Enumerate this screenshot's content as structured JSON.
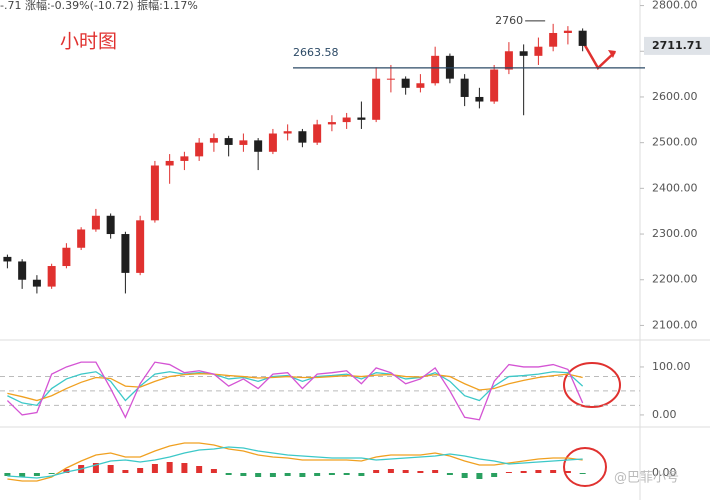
{
  "quote": "-.71 涨幅:-0.39%(-10.72) 振幅:1.17%",
  "watermark": "@巴菲小号",
  "chart_data": [
    {
      "type": "candlestick",
      "title": "小时图",
      "up_color": "#e0312f",
      "down_color": "#1f1f1f",
      "candles": [
        [
          2250,
          2255,
          2225,
          2240
        ],
        [
          2240,
          2245,
          2180,
          2200
        ],
        [
          2200,
          2210,
          2170,
          2185
        ],
        [
          2185,
          2235,
          2180,
          2230
        ],
        [
          2230,
          2280,
          2225,
          2270
        ],
        [
          2270,
          2315,
          2265,
          2310
        ],
        [
          2310,
          2355,
          2305,
          2340
        ],
        [
          2340,
          2345,
          2290,
          2300
        ],
        [
          2300,
          2305,
          2170,
          2215
        ],
        [
          2215,
          2340,
          2210,
          2330
        ],
        [
          2330,
          2460,
          2325,
          2450
        ],
        [
          2450,
          2475,
          2410,
          2460
        ],
        [
          2460,
          2480,
          2440,
          2470
        ],
        [
          2470,
          2510,
          2460,
          2500
        ],
        [
          2500,
          2520,
          2480,
          2510
        ],
        [
          2510,
          2515,
          2470,
          2495
        ],
        [
          2495,
          2520,
          2480,
          2505
        ],
        [
          2505,
          2510,
          2440,
          2480
        ],
        [
          2480,
          2530,
          2475,
          2520
        ],
        [
          2520,
          2540,
          2505,
          2525
        ],
        [
          2525,
          2530,
          2490,
          2500
        ],
        [
          2500,
          2550,
          2495,
          2540
        ],
        [
          2540,
          2560,
          2525,
          2545
        ],
        [
          2545,
          2565,
          2530,
          2555
        ],
        [
          2555,
          2590,
          2530,
          2550
        ],
        [
          2550,
          2665,
          2545,
          2640
        ],
        [
          2640,
          2670,
          2610,
          2640
        ],
        [
          2640,
          2645,
          2605,
          2620
        ],
        [
          2620,
          2650,
          2610,
          2630
        ],
        [
          2630,
          2710,
          2625,
          2690
        ],
        [
          2690,
          2695,
          2630,
          2640
        ],
        [
          2640,
          2650,
          2580,
          2600
        ],
        [
          2600,
          2620,
          2575,
          2590
        ],
        [
          2590,
          2670,
          2585,
          2660
        ],
        [
          2660,
          2720,
          2650,
          2700
        ],
        [
          2700,
          2715,
          2560,
          2690
        ],
        [
          2690,
          2730,
          2670,
          2710
        ],
        [
          2710,
          2760,
          2700,
          2740
        ],
        [
          2740,
          2755,
          2715,
          2745
        ],
        [
          2745,
          2750,
          2700,
          2711.71
        ]
      ],
      "ylim": [
        2090,
        2810
      ],
      "yticks": [
        {
          "value": 2800,
          "label": "2800.00"
        },
        {
          "value": 2700,
          "label": "2700.00"
        },
        {
          "value": 2600,
          "label": "2600.00"
        },
        {
          "value": 2500,
          "label": "2500.00"
        },
        {
          "value": 2400,
          "label": "2400.00"
        },
        {
          "value": 2300,
          "label": "2300.00"
        },
        {
          "value": 2200,
          "label": "2200.00"
        },
        {
          "value": 2100,
          "label": "2100.00"
        }
      ],
      "hline": 2663.58,
      "hline_color": "#2c4a66",
      "peak": 2760,
      "last_price": 2711.71
    },
    {
      "type": "line",
      "ylim": [
        -21,
        152
      ],
      "yticks": [
        {
          "value": 100,
          "label": "100.00"
        },
        {
          "value": 0,
          "label": "0.00"
        }
      ],
      "guides": [
        80,
        50,
        20
      ],
      "series": [
        {
          "color": "#3cc8c8",
          "values": [
            40,
            25,
            20,
            55,
            75,
            85,
            90,
            70,
            30,
            60,
            85,
            90,
            85,
            88,
            85,
            75,
            78,
            70,
            80,
            82,
            70,
            80,
            82,
            85,
            75,
            88,
            85,
            75,
            78,
            88,
            70,
            40,
            30,
            60,
            80,
            82,
            85,
            90,
            88,
            60
          ]
        },
        {
          "color": "#f0a020",
          "values": [
            45,
            38,
            30,
            40,
            55,
            68,
            78,
            76,
            60,
            58,
            70,
            80,
            84,
            86,
            85,
            82,
            80,
            77,
            78,
            80,
            78,
            78,
            80,
            82,
            80,
            83,
            84,
            80,
            79,
            84,
            80,
            65,
            52,
            55,
            65,
            72,
            78,
            82,
            85,
            78
          ]
        },
        {
          "color": "#d454d4",
          "values": [
            30,
            0,
            5,
            85,
            100,
            110,
            110,
            55,
            -5,
            65,
            110,
            105,
            88,
            92,
            85,
            60,
            75,
            55,
            85,
            88,
            55,
            85,
            88,
            92,
            65,
            98,
            88,
            65,
            75,
            98,
            50,
            -5,
            -10,
            70,
            105,
            100,
            100,
            105,
            95,
            25
          ]
        }
      ]
    },
    {
      "type": "bar",
      "ylim": [
        -25,
        45
      ],
      "yticks": [
        {
          "value": 0,
          "label": "0.00"
        }
      ],
      "positive_color": "#e0312f",
      "negative_color": "#2aa060",
      "values": [
        -3,
        -4,
        -3,
        -1,
        4,
        8,
        10,
        8,
        3,
        5,
        9,
        11,
        10,
        7,
        4,
        -2,
        -3,
        -4,
        -4,
        -3,
        -4,
        -3,
        -2,
        -2,
        -3,
        3,
        4,
        3,
        2,
        3,
        -2,
        -5,
        -6,
        -4,
        1,
        2,
        3,
        3,
        2,
        -1
      ],
      "series": [
        {
          "color": "#f0a020",
          "values": [
            -6,
            -8,
            -8,
            -4,
            5,
            12,
            18,
            20,
            16,
            16,
            22,
            27,
            30,
            30,
            28,
            24,
            22,
            18,
            16,
            15,
            13,
            13,
            13,
            13,
            12,
            16,
            18,
            18,
            18,
            20,
            17,
            12,
            8,
            8,
            10,
            12,
            14,
            15,
            15,
            13
          ]
        },
        {
          "color": "#3cc8c8",
          "values": [
            -3,
            -4,
            -5,
            -3,
            1,
            4,
            8,
            12,
            13,
            11,
            13,
            16,
            20,
            23,
            24,
            26,
            25,
            22,
            20,
            18,
            17,
            16,
            15,
            15,
            15,
            13,
            14,
            15,
            16,
            17,
            19,
            17,
            14,
            12,
            9,
            10,
            11,
            12,
            13,
            14
          ]
        }
      ]
    }
  ]
}
